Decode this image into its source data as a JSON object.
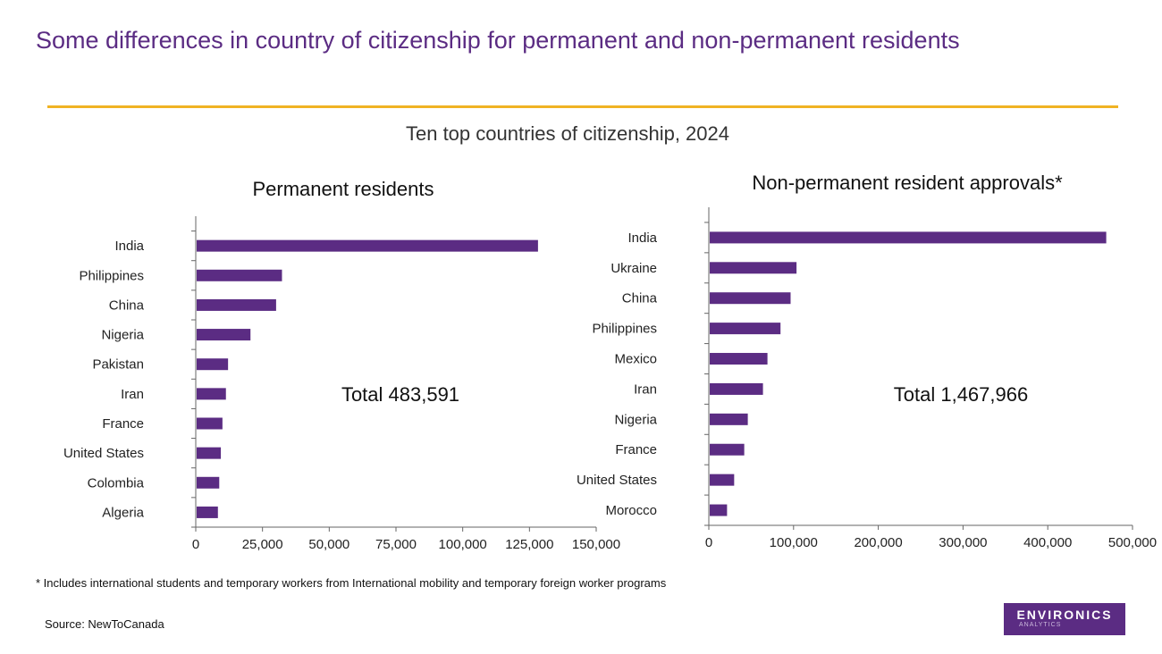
{
  "title": "Some differences in country of citizenship for permanent and non-permanent residents",
  "subtitle": "Ten top countries of citizenship, 2024",
  "footnote": "* Includes international students and temporary workers from International mobility and temporary foreign worker programs",
  "source": "Source: NewToCanada",
  "logo": {
    "main": "ENVIRONICS",
    "sub": "ANALYTICS"
  },
  "colors": {
    "bar": "#5b2c83",
    "title": "#5b2c83",
    "rule": "#f0b323"
  },
  "chart_data": [
    {
      "type": "bar",
      "orientation": "horizontal",
      "title": "Permanent residents",
      "annotation": "Total 483,591",
      "categories": [
        "India",
        "Philippines",
        "China",
        "Nigeria",
        "Pakistan",
        "Iran",
        "France",
        "United States",
        "Colombia",
        "Algeria"
      ],
      "values": [
        128200,
        32300,
        30100,
        20500,
        12100,
        11300,
        10000,
        9400,
        8800,
        8300
      ],
      "xlim": [
        0,
        150000
      ],
      "xticks": [
        "0",
        "25,000",
        "50,000",
        "75,000",
        "100,000",
        "125,000",
        "150,000"
      ],
      "grid": false
    },
    {
      "type": "bar",
      "orientation": "horizontal",
      "title": "Non-permanent resident approvals*",
      "annotation": "Total 1,467,966",
      "categories": [
        "India",
        "Ukraine",
        "China",
        "Philippines",
        "Mexico",
        "Iran",
        "Nigeria",
        "France",
        "United States",
        "Morocco"
      ],
      "values": [
        469000,
        103500,
        96500,
        84600,
        69200,
        63900,
        46000,
        41800,
        29900,
        21500
      ],
      "xlim": [
        0,
        500000
      ],
      "xticks": [
        "0",
        "100,000",
        "200,000",
        "300,000",
        "400,000",
        "500,000"
      ],
      "grid": false
    }
  ]
}
